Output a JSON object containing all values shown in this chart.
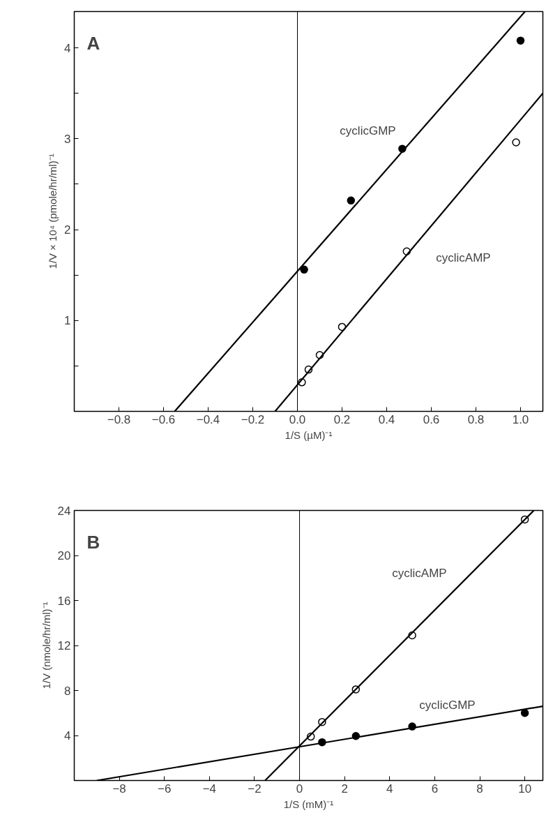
{
  "chart_data": [
    {
      "type": "scatter",
      "xlabel": "1/S (µM)⁻¹",
      "ylabel": "1/V × 10⁴ (pmole/hr/ml)⁻¹",
      "xlim": [
        -1.0,
        1.1
      ],
      "ylim": [
        0,
        4.4
      ],
      "xticks": [
        {
          "value": -0.8,
          "label": "−0.8"
        },
        {
          "value": -0.6,
          "label": "−0.6"
        },
        {
          "value": -0.4,
          "label": "−0.4"
        },
        {
          "value": -0.2,
          "label": "−0.2"
        },
        {
          "value": 0,
          "label": "0.0"
        },
        {
          "value": 0.2,
          "label": "0.2"
        },
        {
          "value": 0.4,
          "label": "0.4"
        },
        {
          "value": 0.6,
          "label": "0.6"
        },
        {
          "value": 0.8,
          "label": "0.8"
        },
        {
          "value": 1.0,
          "label": "1.0"
        }
      ],
      "yticks": [
        {
          "value": 0.5,
          "label": null
        },
        1,
        {
          "value": 1.5,
          "label": null
        },
        2,
        {
          "value": 2.5,
          "label": null
        },
        3,
        {
          "value": 3.5,
          "label": null
        },
        4
      ],
      "grid": false,
      "ref_lines": [
        {
          "axis": "x",
          "value": 0,
          "label": null
        }
      ],
      "series": [
        {
          "marker": "circle",
          "color": "#000000",
          "x": [
            0.03,
            0.24,
            0.47,
            1.0
          ],
          "values": [
            1.56,
            2.32,
            2.89,
            4.08
          ]
        },
        {
          "marker": "circle",
          "color": "#ffffff",
          "x": [
            0.02,
            0.05,
            0.1,
            0.2,
            0.49,
            0.98
          ],
          "values": [
            0.32,
            0.46,
            0.62,
            0.93,
            1.76,
            2.96
          ]
        },
        {
          "type": "line",
          "color": "#000000",
          "x": [
            -0.55,
            1.02
          ],
          "values": [
            0,
            4.4
          ]
        },
        {
          "type": "line",
          "color": "#000000",
          "x": [
            -0.1,
            1.1
          ],
          "values": [
            0,
            3.5
          ]
        }
      ],
      "annotations": [
        "A",
        "cyclicGMP",
        "cyclicAMP"
      ]
    },
    {
      "type": "scatter",
      "xlabel": "1/S (mM)⁻¹",
      "ylabel": "1/V (nmole/hr/ml)⁻¹",
      "xlim": [
        -10,
        10.8
      ],
      "ylim": [
        0,
        24
      ],
      "xticks": [
        {
          "value": -8,
          "label": "−8"
        },
        {
          "value": -6,
          "label": "−6"
        },
        {
          "value": -4,
          "label": "−4"
        },
        {
          "value": -2,
          "label": "−2"
        },
        0,
        2,
        4,
        6,
        8,
        10
      ],
      "yticks": [
        4,
        8,
        12,
        16,
        20,
        24
      ],
      "grid": false,
      "ref_lines": [
        {
          "axis": "x",
          "value": 0,
          "label": null
        }
      ],
      "series": [
        {
          "marker": "circle",
          "color": "#ffffff",
          "x": [
            0.5,
            1,
            2.5,
            5,
            10
          ],
          "values": [
            3.9,
            5.2,
            8.1,
            12.9,
            23.2
          ]
        },
        {
          "marker": "circle",
          "color": "#000000",
          "x": [
            1,
            2.5,
            5,
            10
          ],
          "values": [
            3.4,
            3.95,
            4.8,
            6.0
          ]
        },
        {
          "type": "line",
          "color": "#000000",
          "x": [
            -1.53,
            10.4
          ],
          "values": [
            0,
            24
          ]
        },
        {
          "type": "line",
          "color": "#000000",
          "x": [
            -9.0,
            10.8
          ],
          "values": [
            0,
            6.6
          ]
        }
      ],
      "annotations": [
        "B",
        "cyclicAMP",
        "cyclicGMP"
      ]
    }
  ]
}
